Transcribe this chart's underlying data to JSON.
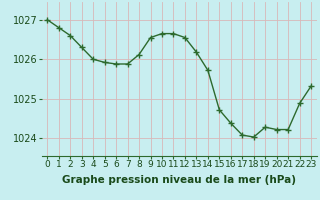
{
  "x": [
    0,
    1,
    2,
    3,
    4,
    5,
    6,
    7,
    8,
    9,
    10,
    11,
    12,
    13,
    14,
    15,
    16,
    17,
    18,
    19,
    20,
    21,
    22,
    23
  ],
  "y": [
    1027.0,
    1026.8,
    1026.6,
    1026.3,
    1026.0,
    1025.92,
    1025.88,
    1025.88,
    1026.12,
    1026.55,
    1026.65,
    1026.65,
    1026.55,
    1026.18,
    1025.72,
    1024.72,
    1024.38,
    1024.08,
    1024.03,
    1024.28,
    1024.22,
    1024.22,
    1024.88,
    1025.32
  ],
  "line_color": "#2d6a2d",
  "marker": "P",
  "marker_size": 3,
  "line_width": 1.0,
  "background_color": "#c8eef0",
  "grid_color": "#d8b8b8",
  "xlabel": "Graphe pression niveau de la mer (hPa)",
  "xlabel_color": "#1a4a1a",
  "xlabel_fontsize": 7.5,
  "tick_color": "#1a4a1a",
  "tick_fontsize": 6.5,
  "ytick_fontsize": 7,
  "yticks": [
    1024,
    1025,
    1026,
    1027
  ],
  "ylim": [
    1023.55,
    1027.45
  ],
  "xlim": [
    -0.5,
    23.5
  ],
  "xticks": [
    0,
    1,
    2,
    3,
    4,
    5,
    6,
    7,
    8,
    9,
    10,
    11,
    12,
    13,
    14,
    15,
    16,
    17,
    18,
    19,
    20,
    21,
    22,
    23
  ]
}
